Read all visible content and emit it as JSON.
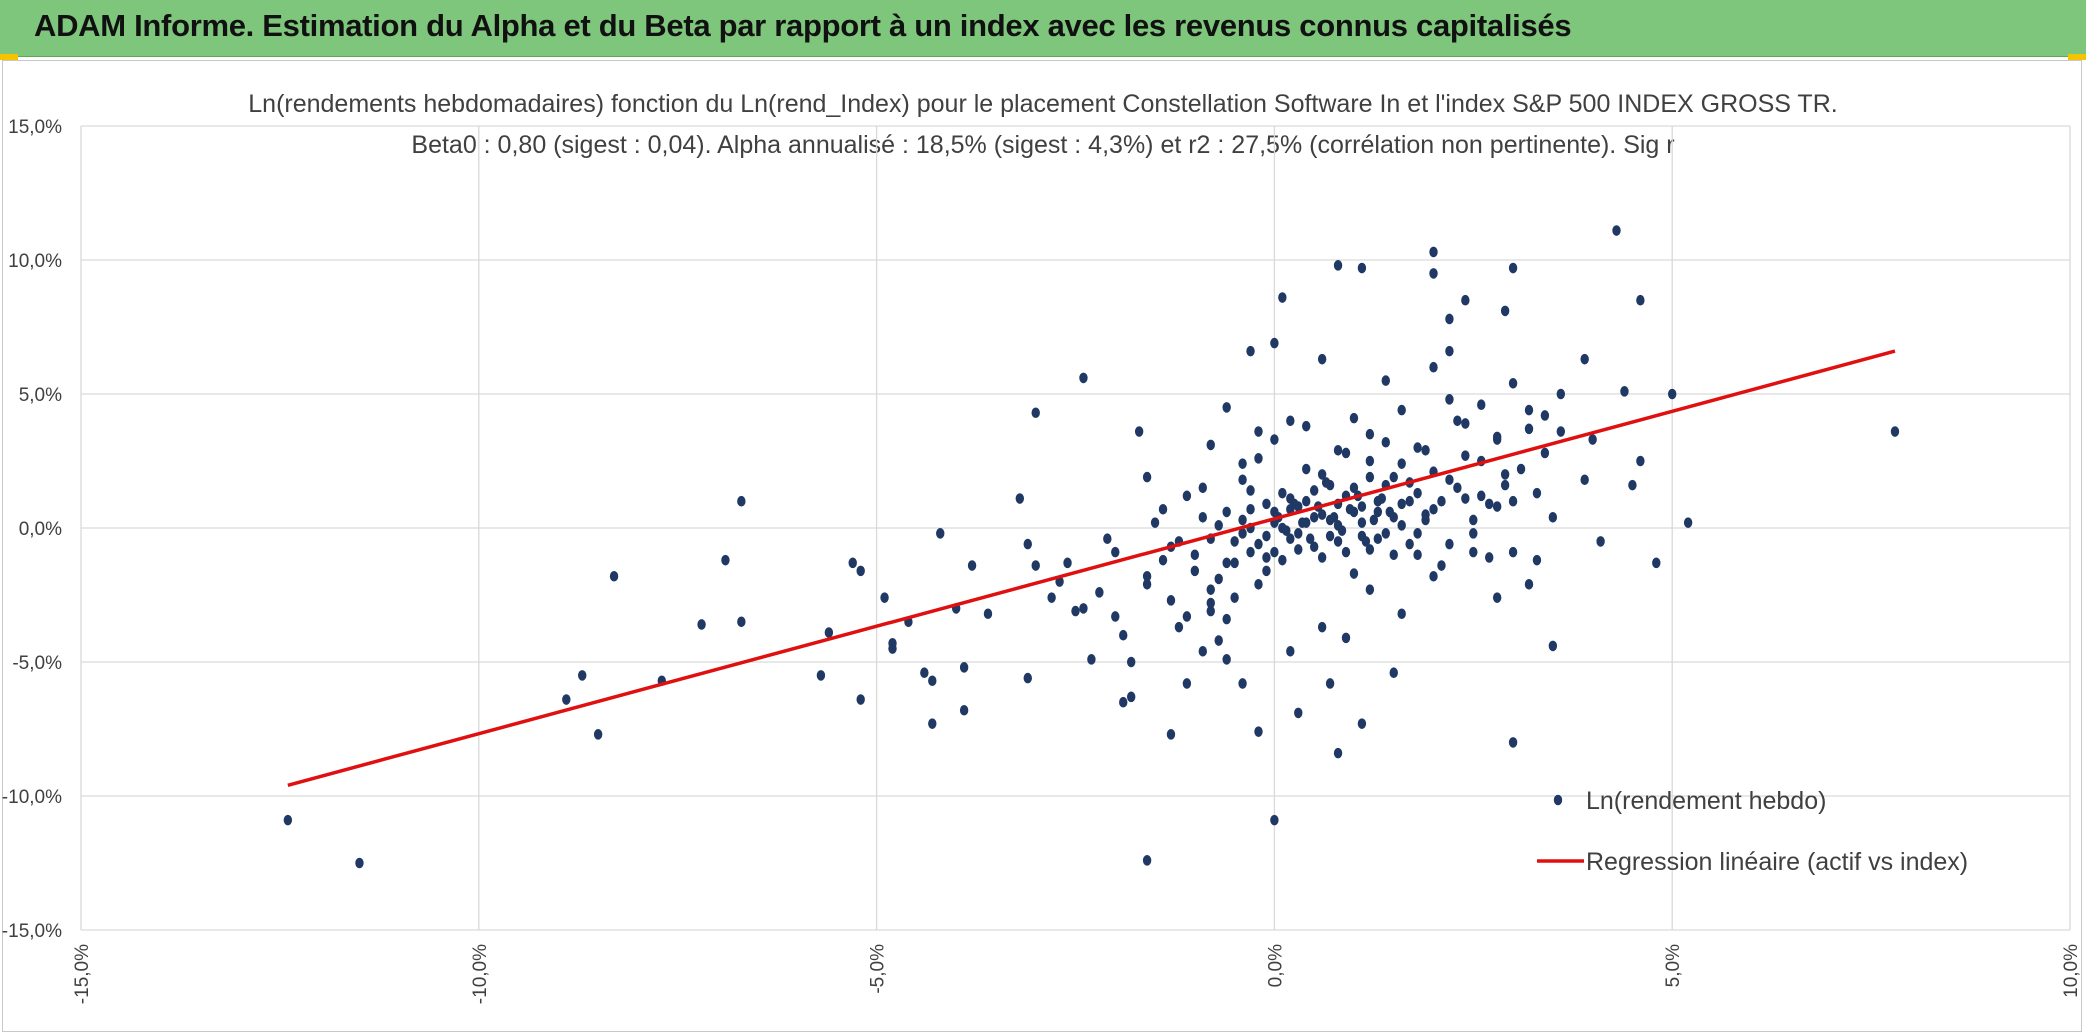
{
  "banner": {
    "title": "ADAM Informe. Estimation du Alpha et du Beta par rapport à un index avec les revenus connus capitalisés"
  },
  "chart_data": {
    "type": "scatter",
    "title": "Ln(rendements hebdomadaires) fonction du Ln(rend_Index) pour le placement Constellation Software In et l'index S&P 500 INDEX GROSS TR.",
    "subtitle": "Beta0 : 0,80 (sigest : 0,04). Alpha annualisé : 18,5% (sigest : 4,3%) et r2 : 27,5% (corrélation non pertinente). Sig r",
    "xlim": [
      -15,
      10
    ],
    "ylim": [
      -15,
      15
    ],
    "x_ticks": [
      -15,
      -10,
      -5,
      0,
      5,
      10
    ],
    "y_ticks": [
      15,
      10,
      5,
      0,
      -5,
      -10,
      -15
    ],
    "x_tick_labels": [
      "-15,0%",
      "-10,0%",
      "-5,0%",
      "0,0%",
      "5,0%",
      "10,0%"
    ],
    "y_tick_labels": [
      "15,0%",
      "10,0%",
      "5,0%",
      "0,0%",
      "-5,0%",
      "-10,0%",
      "-15,0%"
    ],
    "grid": true,
    "legend_position": "bottom-right",
    "colors": {
      "points": "#203864",
      "regression": "#e01010",
      "grid": "#d9d9d9",
      "banner": "#7dc67b"
    },
    "series": [
      {
        "name": "Ln(rendement hebdo)",
        "kind": "scatter",
        "points": [
          [
            -12.4,
            -10.9
          ],
          [
            -11.5,
            -12.5
          ],
          [
            -8.9,
            -6.4
          ],
          [
            -8.7,
            -5.5
          ],
          [
            -8.5,
            -7.7
          ],
          [
            -8.3,
            -1.8
          ],
          [
            -7.7,
            -5.7
          ],
          [
            -7.2,
            -3.6
          ],
          [
            -6.9,
            -1.2
          ],
          [
            -6.7,
            1.0
          ],
          [
            -6.7,
            -3.5
          ],
          [
            -5.7,
            -5.5
          ],
          [
            -5.6,
            -3.9
          ],
          [
            -5.3,
            -1.3
          ],
          [
            -5.2,
            -6.4
          ],
          [
            -5.2,
            -1.6
          ],
          [
            -4.9,
            -2.6
          ],
          [
            -4.8,
            -4.5
          ],
          [
            -4.8,
            -4.3
          ],
          [
            -4.6,
            -3.5
          ],
          [
            -4.4,
            -5.4
          ],
          [
            -4.3,
            -7.3
          ],
          [
            -4.3,
            -5.7
          ],
          [
            -4.2,
            -0.2
          ],
          [
            -4.0,
            -3.0
          ],
          [
            -3.9,
            -6.8
          ],
          [
            -3.9,
            -5.2
          ],
          [
            -3.8,
            -1.4
          ],
          [
            -3.6,
            -3.2
          ],
          [
            -3.2,
            1.1
          ],
          [
            -3.1,
            -5.6
          ],
          [
            -3.1,
            -0.6
          ],
          [
            -3.0,
            -1.4
          ],
          [
            -3.0,
            4.3
          ],
          [
            -2.8,
            -2.6
          ],
          [
            -2.7,
            -2.0
          ],
          [
            -2.6,
            -1.3
          ],
          [
            -2.5,
            -3.1
          ],
          [
            -2.4,
            -3.0
          ],
          [
            -2.4,
            5.6
          ],
          [
            -2.3,
            -4.9
          ],
          [
            -2.2,
            -2.4
          ],
          [
            -2.1,
            -0.4
          ],
          [
            -2.0,
            -3.3
          ],
          [
            -1.9,
            -4.0
          ],
          [
            -1.8,
            -6.3
          ],
          [
            -1.8,
            -5.0
          ],
          [
            -1.7,
            3.6
          ],
          [
            -1.6,
            -2.1
          ],
          [
            -1.6,
            1.9
          ],
          [
            -1.4,
            0.7
          ],
          [
            -1.3,
            -2.7
          ],
          [
            -1.3,
            -7.7
          ],
          [
            -1.2,
            -3.7
          ],
          [
            -1.1,
            -3.3
          ],
          [
            -1.1,
            -5.8
          ],
          [
            -1.0,
            -1.0
          ],
          [
            -0.9,
            -4.6
          ],
          [
            -0.8,
            -2.8
          ],
          [
            -0.8,
            -3.1
          ],
          [
            -0.7,
            -4.2
          ],
          [
            -0.6,
            -3.4
          ],
          [
            -0.5,
            -1.3
          ],
          [
            -0.4,
            -0.2
          ],
          [
            -0.3,
            0.0
          ],
          [
            -0.2,
            -2.1
          ],
          [
            -0.1,
            -1.6
          ],
          [
            0.0,
            -0.9
          ],
          [
            -2.0,
            -0.9
          ],
          [
            -1.6,
            -1.8
          ],
          [
            -1.4,
            -1.2
          ],
          [
            -1.2,
            -0.5
          ],
          [
            -1.0,
            -1.6
          ],
          [
            -0.8,
            -0.4
          ],
          [
            -0.7,
            -1.9
          ],
          [
            -0.6,
            0.6
          ],
          [
            -0.5,
            -2.6
          ],
          [
            -0.4,
            0.3
          ],
          [
            -0.3,
            1.4
          ],
          [
            -0.2,
            -0.6
          ],
          [
            -0.1,
            0.9
          ],
          [
            0.0,
            0.2
          ],
          [
            0.1,
            1.3
          ],
          [
            0.2,
            -0.4
          ],
          [
            0.3,
            0.8
          ],
          [
            0.4,
            2.2
          ],
          [
            0.5,
            0.4
          ],
          [
            0.6,
            -1.1
          ],
          [
            0.7,
            1.6
          ],
          [
            0.8,
            0.1
          ],
          [
            0.9,
            2.8
          ],
          [
            1.0,
            0.6
          ],
          [
            1.1,
            -0.3
          ],
          [
            1.2,
            1.9
          ],
          [
            1.3,
            1.0
          ],
          [
            1.4,
            3.2
          ],
          [
            1.5,
            0.4
          ],
          [
            1.6,
            2.4
          ],
          [
            1.7,
            -0.6
          ],
          [
            1.8,
            1.3
          ],
          [
            1.9,
            2.9
          ],
          [
            2.0,
            0.7
          ],
          [
            2.1,
            -1.4
          ],
          [
            2.2,
            1.8
          ],
          [
            2.3,
            4.0
          ],
          [
            2.4,
            1.1
          ],
          [
            2.5,
            -0.2
          ],
          [
            2.6,
            2.5
          ],
          [
            2.7,
            0.9
          ],
          [
            2.8,
            3.3
          ],
          [
            2.9,
            1.6
          ],
          [
            3.0,
            -0.9
          ],
          [
            3.1,
            2.2
          ],
          [
            3.2,
            4.4
          ],
          [
            3.3,
            1.3
          ],
          [
            3.4,
            2.8
          ],
          [
            3.5,
            0.4
          ],
          [
            3.6,
            3.6
          ],
          [
            -1.5,
            0.2
          ],
          [
            -1.3,
            -0.7
          ],
          [
            -1.1,
            1.2
          ],
          [
            -0.9,
            0.4
          ],
          [
            -0.8,
            -2.3
          ],
          [
            -0.6,
            -1.3
          ],
          [
            -0.4,
            1.8
          ],
          [
            -0.3,
            -0.9
          ],
          [
            -0.2,
            2.6
          ],
          [
            -0.1,
            -0.3
          ],
          [
            0.1,
            -1.2
          ],
          [
            0.2,
            0.7
          ],
          [
            0.3,
            -0.2
          ],
          [
            0.4,
            1.0
          ],
          [
            0.5,
            -0.7
          ],
          [
            0.6,
            2.0
          ],
          [
            0.7,
            0.3
          ],
          [
            0.8,
            -0.5
          ],
          [
            0.9,
            1.2
          ],
          [
            1.0,
            -1.7
          ],
          [
            1.1,
            0.8
          ],
          [
            1.2,
            2.5
          ],
          [
            1.3,
            -0.4
          ],
          [
            1.4,
            1.6
          ],
          [
            1.5,
            -1.0
          ],
          [
            1.6,
            0.9
          ],
          [
            1.7,
            1.7
          ],
          [
            1.8,
            -0.2
          ],
          [
            1.9,
            0.5
          ],
          [
            2.0,
            2.1
          ],
          [
            2.1,
            1.0
          ],
          [
            2.2,
            -0.6
          ],
          [
            2.3,
            1.5
          ],
          [
            2.4,
            2.7
          ],
          [
            2.5,
            0.3
          ],
          [
            2.6,
            1.2
          ],
          [
            2.7,
            -1.1
          ],
          [
            2.8,
            0.8
          ],
          [
            2.9,
            2.0
          ],
          [
            3.0,
            1.0
          ],
          [
            -0.9,
            1.5
          ],
          [
            -0.7,
            0.1
          ],
          [
            -0.5,
            -0.5
          ],
          [
            -0.3,
            0.7
          ],
          [
            -0.1,
            -1.1
          ],
          [
            0.0,
            0.6
          ],
          [
            0.1,
            0.0
          ],
          [
            0.2,
            1.1
          ],
          [
            0.3,
            -0.8
          ],
          [
            0.4,
            0.2
          ],
          [
            0.5,
            1.4
          ],
          [
            0.6,
            0.5
          ],
          [
            0.7,
            -0.3
          ],
          [
            0.8,
            0.9
          ],
          [
            0.9,
            -0.9
          ],
          [
            1.0,
            1.5
          ],
          [
            1.1,
            0.2
          ],
          [
            1.2,
            -0.8
          ],
          [
            1.3,
            0.6
          ],
          [
            1.4,
            -0.2
          ],
          [
            1.5,
            1.9
          ],
          [
            1.6,
            0.1
          ],
          [
            1.7,
            1.0
          ],
          [
            1.8,
            -1.0
          ],
          [
            1.9,
            0.3
          ],
          [
            0.05,
            0.4
          ],
          [
            0.15,
            -0.1
          ],
          [
            0.25,
            0.9
          ],
          [
            0.35,
            0.2
          ],
          [
            0.45,
            -0.4
          ],
          [
            0.55,
            0.8
          ],
          [
            0.65,
            1.7
          ],
          [
            0.75,
            0.4
          ],
          [
            0.85,
            -0.1
          ],
          [
            0.95,
            0.7
          ],
          [
            1.05,
            1.2
          ],
          [
            1.15,
            -0.5
          ],
          [
            1.25,
            0.3
          ],
          [
            1.35,
            1.1
          ],
          [
            1.45,
            0.6
          ],
          [
            -0.8,
            3.1
          ],
          [
            -0.6,
            4.5
          ],
          [
            -0.4,
            2.4
          ],
          [
            -0.2,
            3.6
          ],
          [
            0.0,
            3.3
          ],
          [
            0.2,
            4.0
          ],
          [
            0.4,
            3.8
          ],
          [
            0.6,
            6.3
          ],
          [
            0.8,
            2.9
          ],
          [
            1.0,
            4.1
          ],
          [
            1.2,
            3.5
          ],
          [
            1.4,
            5.5
          ],
          [
            1.6,
            4.4
          ],
          [
            1.8,
            3.0
          ],
          [
            2.0,
            6.0
          ],
          [
            2.2,
            4.8
          ],
          [
            2.4,
            3.9
          ],
          [
            2.6,
            4.6
          ],
          [
            2.8,
            3.4
          ],
          [
            3.0,
            5.4
          ],
          [
            3.2,
            3.7
          ],
          [
            3.4,
            4.2
          ],
          [
            3.6,
            5.0
          ],
          [
            -0.3,
            6.6
          ],
          [
            0.0,
            6.9
          ],
          [
            0.1,
            8.6
          ],
          [
            0.8,
            9.8
          ],
          [
            1.1,
            9.7
          ],
          [
            2.0,
            10.3
          ],
          [
            2.0,
            9.5
          ],
          [
            2.2,
            6.6
          ],
          [
            2.4,
            8.5
          ],
          [
            2.2,
            7.8
          ],
          [
            2.9,
            8.1
          ],
          [
            3.0,
            9.7
          ],
          [
            3.9,
            6.3
          ],
          [
            4.3,
            11.1
          ],
          [
            4.6,
            8.5
          ],
          [
            4.6,
            2.5
          ],
          [
            4.8,
            -1.3
          ],
          [
            5.0,
            5.0
          ],
          [
            5.2,
            0.2
          ],
          [
            4.4,
            5.1
          ],
          [
            4.5,
            1.6
          ],
          [
            4.0,
            3.3
          ],
          [
            4.1,
            -0.5
          ],
          [
            3.9,
            1.8
          ],
          [
            3.5,
            -4.4
          ],
          [
            3.0,
            -8.0
          ],
          [
            3.2,
            -2.1
          ],
          [
            3.3,
            -1.2
          ],
          [
            2.8,
            -2.6
          ],
          [
            2.5,
            -0.9
          ],
          [
            2.0,
            -1.8
          ],
          [
            1.5,
            -5.4
          ],
          [
            1.1,
            -7.3
          ],
          [
            0.8,
            -8.4
          ],
          [
            0.7,
            -5.8
          ],
          [
            0.6,
            -3.7
          ],
          [
            0.3,
            -6.9
          ],
          [
            0.2,
            -4.6
          ],
          [
            0.0,
            -10.9
          ],
          [
            -0.2,
            -7.6
          ],
          [
            -0.4,
            -5.8
          ],
          [
            -0.6,
            -4.9
          ],
          [
            -1.6,
            -12.4
          ],
          [
            -1.9,
            -6.5
          ],
          [
            1.2,
            -2.3
          ],
          [
            1.6,
            -3.2
          ],
          [
            0.9,
            -4.1
          ],
          [
            7.8,
            3.6
          ]
        ]
      },
      {
        "name": "Regression linéaire (actif vs index)",
        "kind": "line",
        "x": [
          -12.4,
          7.8
        ],
        "y": [
          -9.6,
          6.6
        ]
      }
    ]
  }
}
